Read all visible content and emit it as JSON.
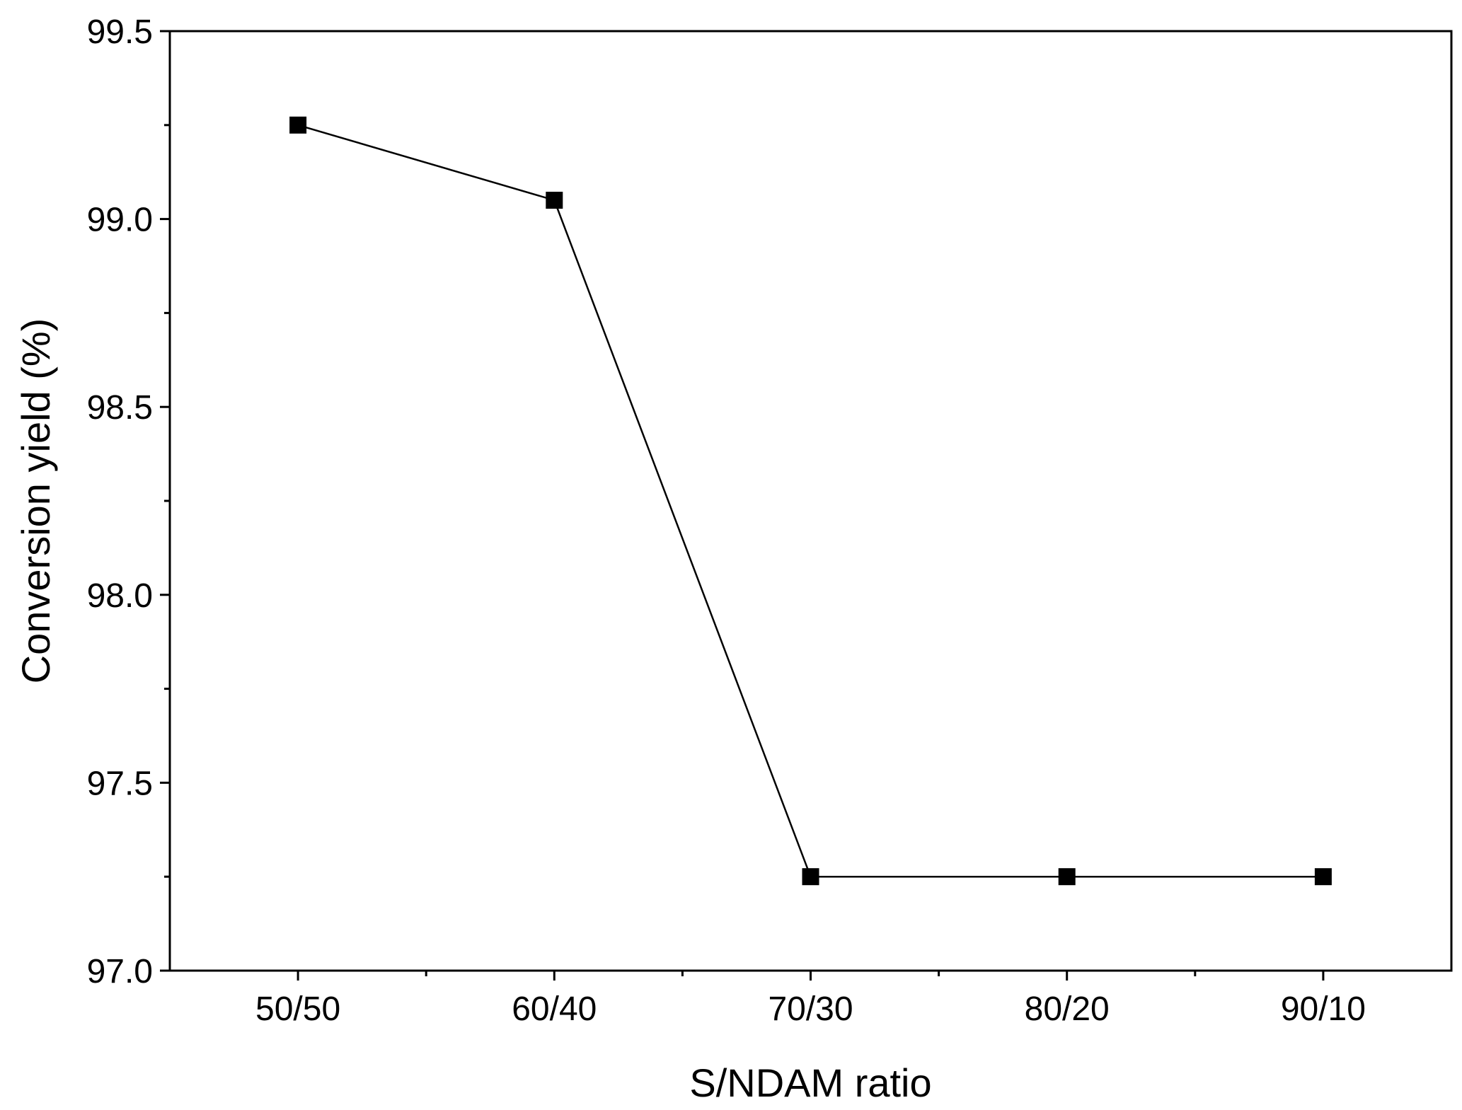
{
  "chart_data": {
    "type": "line",
    "title": "",
    "xlabel": "S/NDAM ratio",
    "ylabel": "Conversion yield (%)",
    "categories": [
      "50/50",
      "60/40",
      "70/30",
      "80/20",
      "90/10"
    ],
    "series": [
      {
        "values": [
          99.25,
          99.05,
          97.25,
          97.25,
          97.25
        ],
        "marker": "square"
      }
    ],
    "ylim": [
      97.0,
      99.5
    ],
    "yticks": [
      "97.0",
      "97.5",
      "98.0",
      "98.5",
      "99.0",
      "99.5"
    ],
    "y_minor_step": 0.25,
    "grid": false,
    "legend": "none",
    "colors": {
      "line": "#000000",
      "marker": "#000000",
      "axis": "#000000",
      "background": "#ffffff"
    }
  }
}
